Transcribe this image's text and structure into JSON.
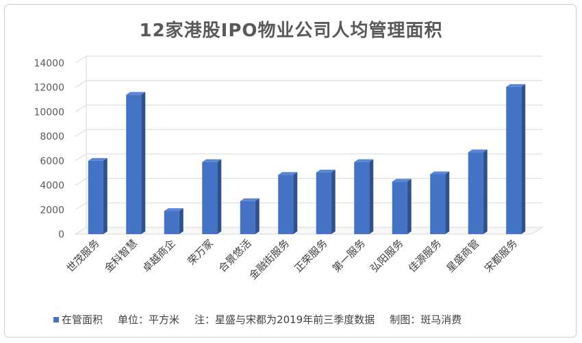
{
  "chart_data": {
    "type": "bar",
    "title": "12家港股IPO物业公司人均管理面积",
    "categories": [
      "世茂服务",
      "金科智慧",
      "卓越商企",
      "荣万家",
      "合景悠活",
      "金融街服务",
      "正荣服务",
      "第一服务",
      "弘阳服务",
      "佳源服务",
      "星盛商管",
      "宋都服务"
    ],
    "series": [
      {
        "name": "在管面积",
        "values": [
          6000,
          11400,
          1900,
          5900,
          2700,
          4850,
          5050,
          5900,
          4300,
          4900,
          6700,
          12050
        ]
      }
    ],
    "ylim": [
      0,
      14000
    ],
    "yticks": [
      0,
      2000,
      4000,
      6000,
      8000,
      10000,
      12000,
      14000
    ],
    "grid": true,
    "legend_position": "bottom-left",
    "bar_color": "#4472C4",
    "bar_side_color": "#2F528F",
    "bar_top_color": "#5B85D6"
  },
  "footer": {
    "legend_label": "在管面积",
    "unit": "单位：平方米",
    "note": "注：星盛与宋都为2019年前三季度数据",
    "credit": "制图：斑马消费"
  }
}
